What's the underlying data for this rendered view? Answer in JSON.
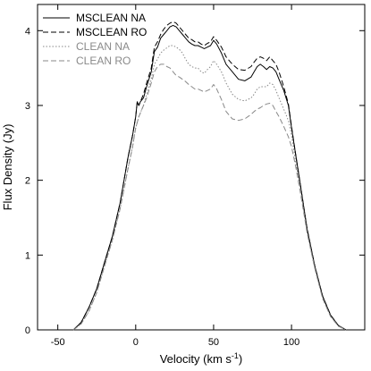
{
  "chart_data": {
    "type": "line",
    "title": "",
    "xlabel": "Velocity (km s",
    "xlabel_sup": "-1",
    "xlabel_end": ")",
    "ylabel": "Flux Density (Jy)",
    "xlim": [
      -63,
      147
    ],
    "ylim": [
      0,
      4.35
    ],
    "xticks": [
      -50,
      0,
      50,
      100
    ],
    "yticks": [
      0,
      1,
      2,
      3,
      4
    ],
    "grid": false,
    "legend_position": "top-left",
    "series": [
      {
        "name": "MSCLEAN NA",
        "style": "solid",
        "color": "#000000",
        "x": [
          -40,
          -35,
          -30,
          -25,
          -20,
          -15,
          -10,
          -5,
          -2,
          0,
          1,
          2,
          3,
          5,
          7,
          10,
          12,
          14,
          16,
          18,
          20,
          22,
          24,
          26,
          28,
          30,
          32,
          34,
          36,
          38,
          40,
          42,
          44,
          46,
          48,
          50,
          52,
          55,
          58,
          62,
          66,
          70,
          74,
          76,
          78,
          80,
          82,
          84,
          86,
          88,
          90,
          92,
          95,
          98,
          100,
          103,
          106,
          110,
          115,
          120,
          125,
          130,
          135
        ],
        "y": [
          0.0,
          0.1,
          0.3,
          0.55,
          0.9,
          1.25,
          1.7,
          2.3,
          2.6,
          2.85,
          3.05,
          3.0,
          3.05,
          3.1,
          3.25,
          3.45,
          3.72,
          3.78,
          3.9,
          3.95,
          4.0,
          4.05,
          4.07,
          4.05,
          4.0,
          3.95,
          3.9,
          3.85,
          3.82,
          3.8,
          3.8,
          3.78,
          3.76,
          3.78,
          3.8,
          3.87,
          3.82,
          3.7,
          3.55,
          3.45,
          3.35,
          3.33,
          3.38,
          3.45,
          3.52,
          3.55,
          3.52,
          3.48,
          3.52,
          3.5,
          3.45,
          3.35,
          3.2,
          3.0,
          2.7,
          2.3,
          1.9,
          1.35,
          0.85,
          0.45,
          0.2,
          0.06,
          0.0
        ]
      },
      {
        "name": "MSCLEAN RO",
        "style": "dashed",
        "color": "#000000",
        "x": [
          -40,
          -35,
          -30,
          -25,
          -20,
          -15,
          -10,
          -5,
          -2,
          0,
          1,
          2,
          3,
          5,
          7,
          10,
          12,
          14,
          16,
          18,
          20,
          22,
          24,
          26,
          28,
          30,
          32,
          34,
          36,
          38,
          40,
          42,
          44,
          46,
          48,
          50,
          52,
          55,
          58,
          62,
          66,
          70,
          74,
          76,
          78,
          80,
          82,
          84,
          86,
          88,
          90,
          92,
          95,
          98,
          100,
          103,
          106,
          110,
          115,
          120,
          125,
          130,
          135
        ],
        "y": [
          0.0,
          0.1,
          0.3,
          0.55,
          0.9,
          1.25,
          1.7,
          2.3,
          2.6,
          2.85,
          3.05,
          3.0,
          3.05,
          3.15,
          3.3,
          3.5,
          3.78,
          3.85,
          3.95,
          4.02,
          4.07,
          4.1,
          4.12,
          4.1,
          4.05,
          4.0,
          3.95,
          3.9,
          3.88,
          3.85,
          3.85,
          3.82,
          3.8,
          3.83,
          3.85,
          3.92,
          3.87,
          3.78,
          3.65,
          3.55,
          3.48,
          3.47,
          3.52,
          3.58,
          3.63,
          3.65,
          3.63,
          3.6,
          3.65,
          3.6,
          3.55,
          3.45,
          3.25,
          3.02,
          2.72,
          2.3,
          1.9,
          1.35,
          0.85,
          0.45,
          0.2,
          0.06,
          0.0
        ]
      },
      {
        "name": "CLEAN NA",
        "style": "dotted",
        "color": "#888888",
        "x": [
          -40,
          -35,
          -30,
          -25,
          -20,
          -15,
          -10,
          -5,
          -2,
          0,
          2,
          5,
          7,
          10,
          12,
          14,
          16,
          18,
          20,
          22,
          24,
          26,
          28,
          30,
          32,
          34,
          36,
          38,
          40,
          42,
          44,
          46,
          48,
          50,
          52,
          55,
          58,
          62,
          66,
          70,
          74,
          76,
          78,
          80,
          82,
          84,
          86,
          88,
          90,
          92,
          95,
          98,
          100,
          103,
          106,
          110,
          115,
          120,
          125,
          130,
          135
        ],
        "y": [
          0.0,
          0.08,
          0.25,
          0.5,
          0.85,
          1.2,
          1.62,
          2.15,
          2.45,
          2.7,
          2.85,
          3.0,
          3.15,
          3.35,
          3.55,
          3.62,
          3.7,
          3.74,
          3.77,
          3.8,
          3.8,
          3.78,
          3.75,
          3.7,
          3.62,
          3.55,
          3.52,
          3.5,
          3.5,
          3.45,
          3.43,
          3.48,
          3.52,
          3.6,
          3.55,
          3.45,
          3.3,
          3.15,
          3.08,
          3.06,
          3.1,
          3.15,
          3.22,
          3.25,
          3.25,
          3.25,
          3.3,
          3.28,
          3.2,
          3.1,
          2.95,
          2.8,
          2.6,
          2.2,
          1.85,
          1.3,
          0.82,
          0.42,
          0.18,
          0.05,
          0.0
        ]
      },
      {
        "name": "CLEAN RO",
        "style": "dashed",
        "color": "#888888",
        "x": [
          -40,
          -35,
          -30,
          -25,
          -20,
          -15,
          -10,
          -5,
          -2,
          0,
          2,
          5,
          7,
          10,
          12,
          14,
          16,
          18,
          20,
          22,
          24,
          26,
          28,
          30,
          32,
          34,
          36,
          38,
          40,
          42,
          44,
          46,
          48,
          50,
          52,
          55,
          58,
          62,
          66,
          70,
          74,
          76,
          78,
          80,
          82,
          84,
          86,
          88,
          90,
          92,
          95,
          98,
          100,
          103,
          106,
          110,
          115,
          120,
          125,
          130,
          135
        ],
        "y": [
          0.0,
          0.08,
          0.25,
          0.5,
          0.85,
          1.2,
          1.62,
          2.15,
          2.45,
          2.7,
          2.85,
          3.0,
          3.1,
          3.3,
          3.45,
          3.52,
          3.55,
          3.55,
          3.52,
          3.5,
          3.45,
          3.4,
          3.38,
          3.35,
          3.32,
          3.28,
          3.25,
          3.22,
          3.22,
          3.2,
          3.18,
          3.2,
          3.22,
          3.28,
          3.22,
          3.08,
          2.92,
          2.82,
          2.8,
          2.82,
          2.88,
          2.92,
          2.95,
          2.97,
          3.0,
          3.02,
          3.03,
          3.0,
          2.92,
          2.85,
          2.72,
          2.58,
          2.45,
          2.15,
          1.8,
          1.3,
          0.82,
          0.42,
          0.18,
          0.05,
          0.0
        ]
      }
    ]
  }
}
